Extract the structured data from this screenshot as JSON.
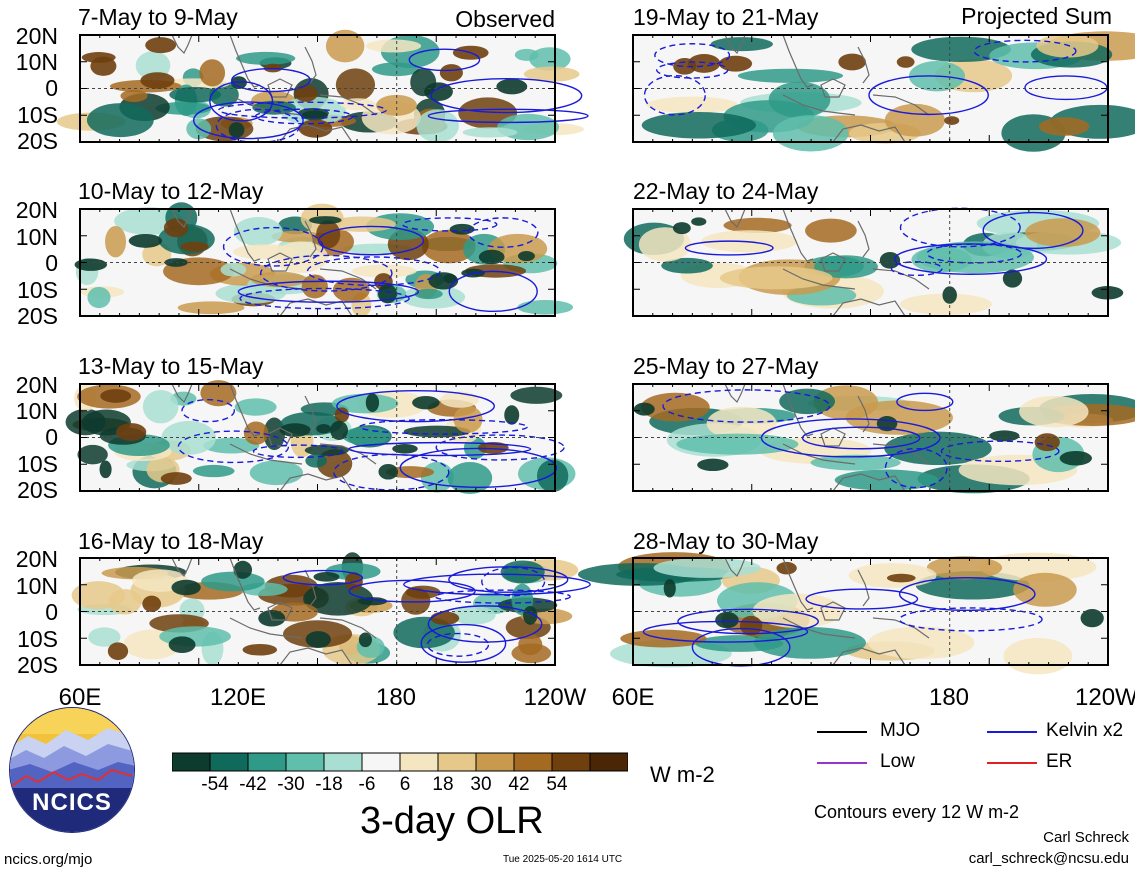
{
  "header": {
    "observed_label": "Observed",
    "projected_label": "Projected Sum"
  },
  "panels": [
    {
      "title": "7-May to 9-May",
      "group": "observed"
    },
    {
      "title": "10-May to 12-May",
      "group": "observed"
    },
    {
      "title": "13-May to 15-May",
      "group": "observed"
    },
    {
      "title": "16-May to 18-May",
      "group": "observed"
    },
    {
      "title": "19-May to 21-May",
      "group": "projected"
    },
    {
      "title": "22-May to 24-May",
      "group": "projected"
    },
    {
      "title": "25-May to 27-May",
      "group": "projected"
    },
    {
      "title": "28-May to 30-May",
      "group": "projected"
    }
  ],
  "axes": {
    "lat_ticks": [
      "20N",
      "10N",
      "0",
      "10S",
      "20S"
    ],
    "lon_ticks": [
      "60E",
      "120E",
      "180",
      "120W"
    ]
  },
  "colorbar": {
    "labels": [
      "-54",
      "-42",
      "-30",
      "-18",
      "-6",
      "6",
      "18",
      "30",
      "42",
      "54"
    ],
    "colors": [
      "#0d3b2e",
      "#106a5c",
      "#2f9a88",
      "#5fbeac",
      "#a9dfd2",
      "#f6f6f6",
      "#f5e6c2",
      "#e6c98a",
      "#c99a4e",
      "#a46a22",
      "#6f3f0e",
      "#4a2606"
    ],
    "units": "W m-2",
    "title": "3-day OLR"
  },
  "legend": {
    "items": [
      {
        "label": "MJO",
        "color": "#000000"
      },
      {
        "label": "Kelvin x2",
        "color": "#1a1adb"
      },
      {
        "label": "Low",
        "color": "#9933cc"
      },
      {
        "label": "ER",
        "color": "#dd2222"
      }
    ],
    "contour_note": "Contours every 12 W m-2"
  },
  "footer": {
    "logo_text": "NCICS",
    "website": "ncics.org/mjo",
    "timestamp": "Tue 2025-05-20 1614 UTC",
    "author": "Carl Schreck",
    "email": "carl_schreck@ncsu.edu"
  },
  "chart_data": {
    "type": "heatmap",
    "title": "3-day OLR",
    "units": "W m-2",
    "x_range": [
      "60E",
      "120W"
    ],
    "y_range": [
      "20S",
      "20N"
    ],
    "color_levels": [
      -54,
      -42,
      -30,
      -18,
      -6,
      6,
      18,
      30,
      42,
      54
    ],
    "contour_interval_w_m2": 12,
    "series": [
      "MJO",
      "Kelvin x2",
      "Low",
      "ER"
    ]
  }
}
